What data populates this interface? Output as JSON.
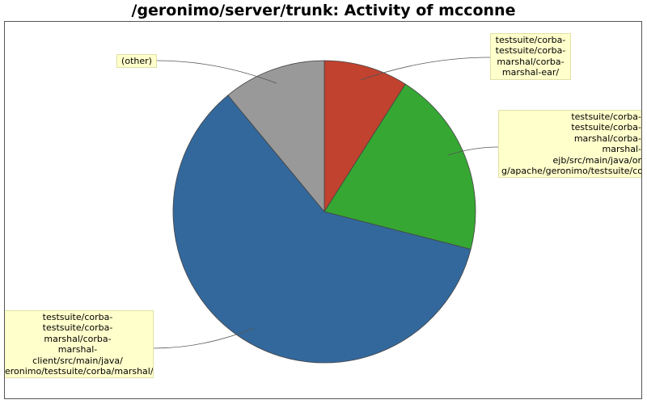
{
  "chart_data": {
    "type": "pie",
    "title": "/geronimo/server/trunk: Activity of mcconne",
    "slices": [
      {
        "label": "testsuite/corba-\ntestsuite/corba-\nmarshal/corba-\nmarshal-ear/",
        "value": 9,
        "color": "#c0422f"
      },
      {
        "label": "testsuite/corba-\ntestsuite/corba-\nmarshal/corba-\nmarshal-\nejb/src/main/java/or\ng/apache/geronimo/testsuite/co",
        "value": 20,
        "color": "#36a733"
      },
      {
        "label": "testsuite/corba-\ntestsuite/corba-\nmarshal/corba-\nmarshal-\nclient/src/main/java/\neronimo/testsuite/corba/marshal/",
        "value": 60,
        "color": "#33689c"
      },
      {
        "label": "(other)",
        "value": 11,
        "color": "#999999"
      }
    ]
  }
}
